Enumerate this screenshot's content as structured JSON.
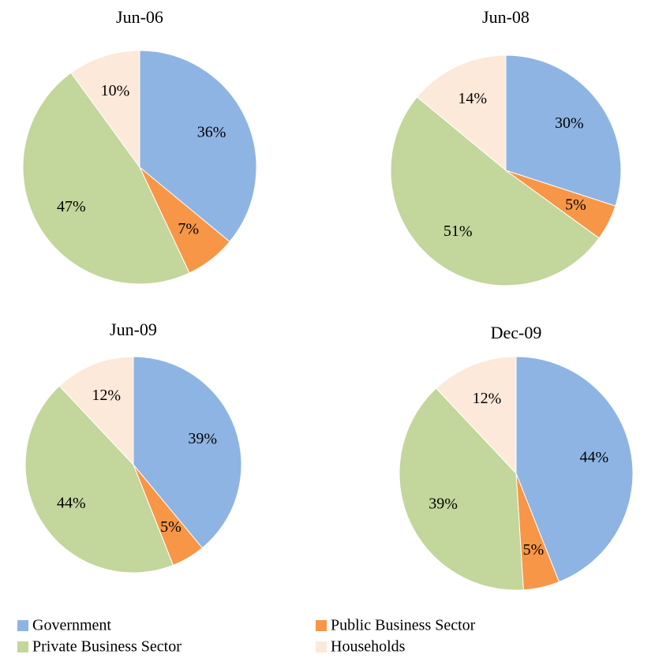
{
  "chart_data": [
    {
      "type": "pie",
      "title": "Jun-06",
      "values": [
        36,
        7,
        47,
        10
      ]
    },
    {
      "type": "pie",
      "title": "Jun-08",
      "values": [
        30,
        5,
        51,
        14
      ]
    },
    {
      "type": "pie",
      "title": "Jun-09",
      "values": [
        39,
        5,
        44,
        12
      ]
    },
    {
      "type": "pie",
      "title": "Dec-09",
      "values": [
        44,
        5,
        39,
        12
      ]
    }
  ],
  "legend": {
    "items": [
      {
        "name": "Government",
        "color": "#8eb4e3"
      },
      {
        "name": "Public Business Sector",
        "color": "#f79646"
      },
      {
        "name": "Private Business Sector",
        "color": "#c3d69b"
      },
      {
        "name": "Households",
        "color": "#fde9d9"
      }
    ]
  }
}
